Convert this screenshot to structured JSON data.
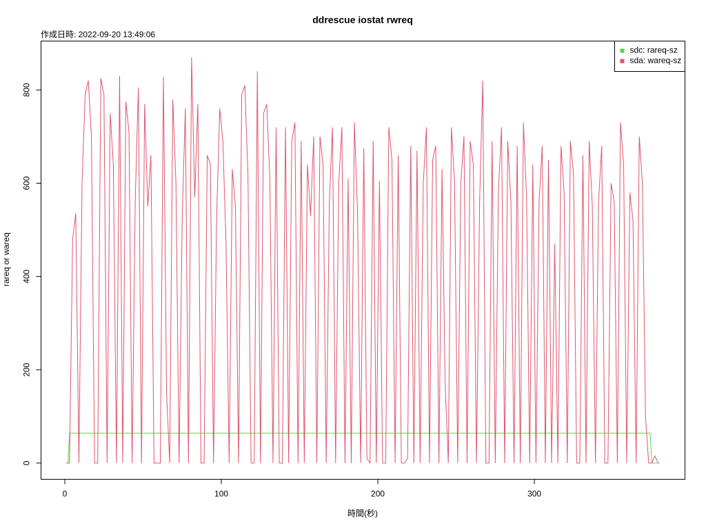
{
  "chart_data": {
    "type": "line",
    "title": "ddrescue iostat rwreq",
    "subtitle": "作成日時: 2022-09-20 13:49:06",
    "x_label": "時間(秒)",
    "y_label": "rareq or wareq",
    "xlim": [
      -15.2,
      396.2
    ],
    "ylim": [
      -34.8,
      904.8
    ],
    "xticks": [
      0,
      100,
      200,
      300
    ],
    "yticks": [
      0,
      200,
      400,
      600,
      800
    ],
    "legend": "top-right",
    "series": [
      {
        "name": "sdc: rareq-sz",
        "color": "#61D04F",
        "x": [
          1,
          2,
          3,
          373,
          374,
          375,
          380
        ],
        "values": [
          0,
          0,
          64,
          64,
          64,
          0,
          0
        ]
      },
      {
        "name": "sda: wareq-sz",
        "color": "#DF536B",
        "x": [
          1,
          3,
          5,
          7,
          9,
          11,
          13,
          15,
          17,
          19,
          21,
          23,
          25,
          27,
          29,
          31,
          33,
          35,
          37,
          39,
          41,
          43,
          45,
          47,
          49,
          51,
          53,
          55,
          57,
          59,
          61,
          63,
          65,
          67,
          69,
          71,
          73,
          75,
          77,
          79,
          81,
          83,
          85,
          87,
          89,
          91,
          93,
          95,
          97,
          99,
          101,
          103,
          105,
          107,
          109,
          111,
          113,
          115,
          117,
          119,
          121,
          123,
          125,
          127,
          129,
          131,
          133,
          135,
          137,
          139,
          141,
          143,
          145,
          147,
          149,
          151,
          153,
          155,
          157,
          159,
          161,
          163,
          165,
          167,
          169,
          171,
          173,
          175,
          177,
          179,
          181,
          183,
          185,
          187,
          189,
          191,
          193,
          195,
          197,
          199,
          201,
          203,
          205,
          207,
          209,
          211,
          213,
          215,
          217,
          219,
          221,
          223,
          225,
          227,
          229,
          231,
          233,
          235,
          237,
          239,
          241,
          243,
          245,
          247,
          249,
          251,
          253,
          255,
          257,
          259,
          261,
          263,
          265,
          267,
          269,
          271,
          273,
          275,
          277,
          279,
          281,
          283,
          285,
          287,
          289,
          291,
          293,
          295,
          297,
          299,
          301,
          303,
          305,
          307,
          309,
          311,
          313,
          315,
          317,
          319,
          321,
          323,
          325,
          327,
          329,
          331,
          333,
          335,
          337,
          339,
          341,
          343,
          345,
          347,
          349,
          351,
          353,
          355,
          357,
          359,
          361,
          363,
          365,
          367,
          369,
          371,
          373,
          375,
          377,
          379
        ],
        "values": [
          0,
          0,
          480,
          535,
          0,
          600,
          790,
          820,
          700,
          0,
          0,
          825,
          790,
          0,
          750,
          640,
          0,
          830,
          0,
          775,
          710,
          0,
          565,
          805,
          0,
          770,
          550,
          660,
          0,
          0,
          0,
          828,
          150,
          0,
          780,
          600,
          0,
          525,
          760,
          0,
          870,
          570,
          770,
          0,
          0,
          660,
          640,
          0,
          530,
          760,
          690,
          470,
          0,
          630,
          550,
          0,
          790,
          810,
          620,
          0,
          0,
          840,
          0,
          750,
          770,
          610,
          0,
          720,
          0,
          0,
          720,
          0,
          690,
          730,
          0,
          690,
          0,
          640,
          530,
          700,
          0,
          700,
          640,
          0,
          560,
          720,
          0,
          600,
          720,
          0,
          610,
          0,
          730,
          540,
          0,
          675,
          10,
          0,
          690,
          0,
          605,
          0,
          0,
          720,
          650,
          0,
          660,
          0,
          0,
          10,
          680,
          0,
          670,
          0,
          600,
          720,
          0,
          650,
          680,
          0,
          630,
          170,
          0,
          720,
          600,
          0,
          600,
          700,
          0,
          690,
          640,
          0,
          560,
          820,
          0,
          0,
          690,
          0,
          580,
          720,
          0,
          690,
          560,
          0,
          680,
          0,
          730,
          570,
          0,
          640,
          0,
          560,
          680,
          0,
          650,
          0,
          470,
          0,
          680,
          580,
          0,
          690,
          620,
          0,
          0,
          660,
          0,
          690,
          550,
          0,
          560,
          680,
          0,
          0,
          600,
          560,
          0,
          730,
          640,
          0,
          580,
          520,
          0,
          700,
          600,
          100,
          0,
          0,
          15,
          0
        ]
      }
    ]
  }
}
